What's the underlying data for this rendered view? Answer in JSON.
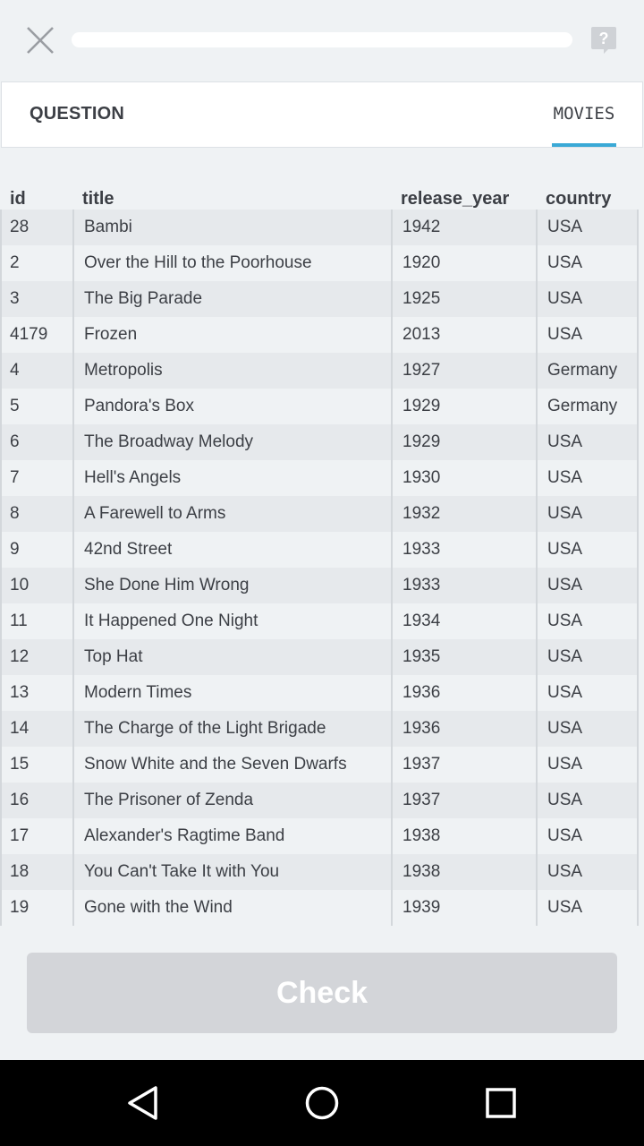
{
  "header": {
    "close_icon": "close-icon",
    "help_icon": "help-icon",
    "progress": 0.0
  },
  "tabs": {
    "question_label": "QUESTION",
    "movies_label": "MOVIES"
  },
  "table": {
    "columns": [
      "id",
      "title",
      "release_year",
      "country"
    ],
    "rows": [
      [
        "28",
        "Bambi",
        "1942",
        "USA"
      ],
      [
        "2",
        "Over the Hill to the Poorhouse",
        "1920",
        "USA"
      ],
      [
        "3",
        "The Big Parade",
        "1925",
        "USA"
      ],
      [
        "4179",
        "Frozen",
        "2013",
        "USA"
      ],
      [
        "4",
        "Metropolis",
        "1927",
        "Germany"
      ],
      [
        "5",
        "Pandora's Box",
        "1929",
        "Germany"
      ],
      [
        "6",
        "The Broadway Melody",
        "1929",
        "USA"
      ],
      [
        "7",
        "Hell's Angels",
        "1930",
        "USA"
      ],
      [
        "8",
        "A Farewell to Arms",
        "1932",
        "USA"
      ],
      [
        "9",
        "42nd Street",
        "1933",
        "USA"
      ],
      [
        "10",
        "She Done Him Wrong",
        "1933",
        "USA"
      ],
      [
        "11",
        "It Happened One Night",
        "1934",
        "USA"
      ],
      [
        "12",
        "Top Hat",
        "1935",
        "USA"
      ],
      [
        "13",
        "Modern Times",
        "1936",
        "USA"
      ],
      [
        "14",
        "The Charge of the Light Brigade",
        "1936",
        "USA"
      ],
      [
        "15",
        "Snow White and the Seven Dwarfs",
        "1937",
        "USA"
      ],
      [
        "16",
        "The Prisoner of Zenda",
        "1937",
        "USA"
      ],
      [
        "17",
        "Alexander's Ragtime Band",
        "1938",
        "USA"
      ],
      [
        "18",
        "You Can't Take It with You",
        "1938",
        "USA"
      ],
      [
        "19",
        "Gone with the Wind",
        "1939",
        "USA"
      ]
    ]
  },
  "check_label": "Check",
  "navbar": {
    "back_icon": "back-triangle-icon",
    "home_icon": "home-circle-icon",
    "recents_icon": "recents-square-icon"
  },
  "colors": {
    "accent": "#3aa9d6",
    "background": "#eff2f4",
    "button_disabled": "#d3d5d9"
  }
}
